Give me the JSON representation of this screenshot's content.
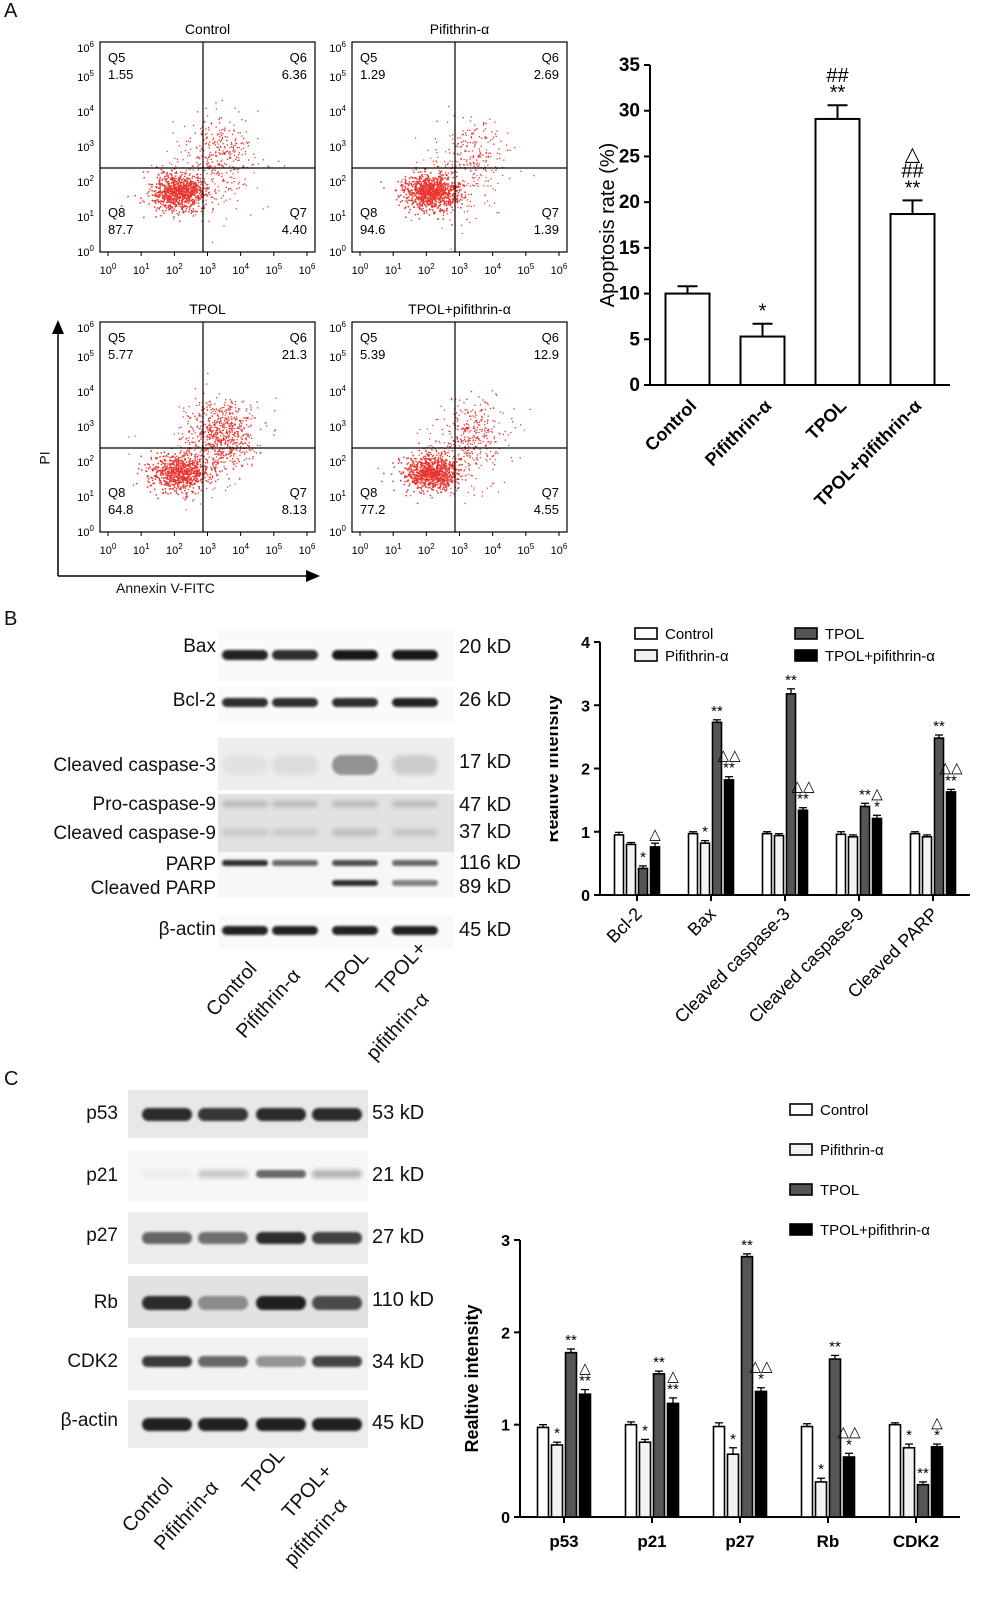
{
  "panels": {
    "a": "A",
    "b": "B",
    "c": "C"
  },
  "flow": {
    "plots": [
      {
        "title": "Control",
        "q5": "1.55",
        "q6": "6.36",
        "q8": "87.7",
        "q7": "4.40"
      },
      {
        "title": "Pifithrin-α",
        "q5": "1.29",
        "q6": "2.69",
        "q8": "94.6",
        "q7": "1.39"
      },
      {
        "title": "TPOL",
        "q5": "5.77",
        "q6": "21.3",
        "q8": "64.8",
        "q7": "8.13"
      },
      {
        "title": "TPOL+pifithrin-α",
        "q5": "5.39",
        "q6": "12.9",
        "q8": "77.2",
        "q7": "4.55"
      }
    ],
    "quadrant_names": {
      "q5": "Q5",
      "q6": "Q6",
      "q7": "Q7",
      "q8": "Q8"
    },
    "ylabel": "PI",
    "xlabel": "Annexin V-FITC",
    "ticks": [
      "10^0",
      "10^1",
      "10^2",
      "10^3",
      "10^4",
      "10^5",
      "10^6"
    ]
  },
  "blot_b": {
    "rows": [
      {
        "label": "Bax",
        "kd": "20 kD"
      },
      {
        "label": "Bcl-2",
        "kd": "26 kD"
      },
      {
        "label": "Cleaved caspase-3",
        "kd": "17 kD"
      },
      {
        "label": "Pro-caspase-9",
        "kd": "47 kD"
      },
      {
        "label": "Cleaved caspase-9",
        "kd": "37 kD"
      },
      {
        "label": "PARP",
        "kd": "116 kD"
      },
      {
        "label": "Cleaved PARP",
        "kd": "89 kD"
      },
      {
        "label": "β-actin",
        "kd": "45 kD"
      }
    ],
    "lanes": [
      "Control",
      "Pifithrin-α",
      "TPOL",
      "TPOL+",
      "pifithrin-α"
    ]
  },
  "blot_c": {
    "rows": [
      {
        "label": "p53",
        "kd": "53 kD"
      },
      {
        "label": "p21",
        "kd": "21 kD"
      },
      {
        "label": "p27",
        "kd": "27 kD"
      },
      {
        "label": "Rb",
        "kd": "110 kD"
      },
      {
        "label": "CDK2",
        "kd": "34 kD"
      },
      {
        "label": "β-actin",
        "kd": "45 kD"
      }
    ],
    "lanes": [
      "Control",
      "Pifithrin-α",
      "TPOL",
      "TPOL+",
      "pifithrin-α"
    ]
  },
  "chart_data": [
    {
      "type": "bar",
      "title": "",
      "xlabel": "",
      "ylabel": "Apoptosis rate (%)",
      "ylim": [
        0,
        35
      ],
      "yticks": [
        0,
        5,
        10,
        15,
        20,
        25,
        30,
        35
      ],
      "categories": [
        "Control",
        "Pifithrin-α",
        "TPOL",
        "TPOL+pifithrin-α"
      ],
      "values": [
        10.0,
        5.3,
        29.1,
        18.7
      ],
      "errors": [
        0.8,
        1.4,
        1.5,
        1.5
      ],
      "annotations": [
        [],
        [
          "*"
        ],
        [
          "**",
          "##"
        ],
        [
          "**",
          "##",
          "△"
        ]
      ],
      "fills": [
        "#ffffff",
        "#ffffff",
        "#ffffff",
        "#ffffff"
      ]
    },
    {
      "type": "bar",
      "title": "",
      "xlabel": "",
      "ylabel": "Realtive intensity",
      "ylim": [
        0,
        4
      ],
      "yticks": [
        0,
        1,
        2,
        3,
        4
      ],
      "categories": [
        "Bcl-2",
        "Bax",
        "Cleaved caspase-3",
        "Cleaved caspase-9",
        "Cleaved PARP"
      ],
      "legend_position": "top",
      "series": [
        {
          "name": "Control",
          "values": [
            0.95,
            0.97,
            0.97,
            0.96,
            0.97
          ],
          "errors": [
            0.04,
            0.03,
            0.03,
            0.04,
            0.03
          ],
          "annotations": [
            "",
            "",
            "",
            "",
            ""
          ],
          "color": "#ffffff"
        },
        {
          "name": "Pifithrin-α",
          "values": [
            0.8,
            0.82,
            0.94,
            0.92,
            0.92
          ],
          "errors": [
            0.03,
            0.04,
            0.03,
            0.03,
            0.03
          ],
          "annotations": [
            "",
            "*",
            "",
            "",
            ""
          ],
          "color": "#f2f2f2"
        },
        {
          "name": "TPOL",
          "values": [
            0.42,
            2.73,
            3.18,
            1.4,
            2.48
          ],
          "errors": [
            0.04,
            0.04,
            0.08,
            0.05,
            0.05
          ],
          "annotations": [
            "*",
            "**",
            "**",
            "**",
            "**"
          ],
          "color": "#555555"
        },
        {
          "name": "TPOL+pifithrin-α",
          "values": [
            0.76,
            1.82,
            1.34,
            1.21,
            1.63
          ],
          "errors": [
            0.06,
            0.05,
            0.04,
            0.05,
            0.04
          ],
          "annotations": [
            "△",
            "**△△",
            "**△△",
            "*△",
            "**△△"
          ],
          "color": "#000000"
        }
      ]
    },
    {
      "type": "bar",
      "title": "",
      "xlabel": "",
      "ylabel": "Realtive intensity",
      "ylim": [
        0,
        3
      ],
      "yticks": [
        0,
        1,
        2,
        3
      ],
      "categories": [
        "p53",
        "p21",
        "p27",
        "Rb",
        "CDK2"
      ],
      "legend_position": "top-right",
      "series": [
        {
          "name": "Control",
          "values": [
            0.97,
            1.0,
            0.98,
            0.98,
            1.0
          ],
          "errors": [
            0.03,
            0.03,
            0.04,
            0.03,
            0.02
          ],
          "annotations": [
            "",
            "",
            "",
            "",
            ""
          ],
          "color": "#ffffff"
        },
        {
          "name": "Pifithrin-α",
          "values": [
            0.78,
            0.81,
            0.68,
            0.38,
            0.75
          ],
          "errors": [
            0.03,
            0.03,
            0.07,
            0.04,
            0.04
          ],
          "annotations": [
            "*",
            "*",
            "*",
            "*",
            "*"
          ],
          "color": "#f2f2f2"
        },
        {
          "name": "TPOL",
          "values": [
            1.78,
            1.55,
            2.82,
            1.71,
            0.35
          ],
          "errors": [
            0.04,
            0.03,
            0.03,
            0.04,
            0.03
          ],
          "annotations": [
            "**",
            "**",
            "**",
            "**",
            "**"
          ],
          "color": "#555555"
        },
        {
          "name": "TPOL+pifithrin-α",
          "values": [
            1.33,
            1.23,
            1.36,
            0.65,
            0.76
          ],
          "errors": [
            0.05,
            0.06,
            0.04,
            0.04,
            0.03
          ],
          "annotations": [
            "**△",
            "**△",
            "*△△",
            "*△△",
            "*△"
          ],
          "color": "#000000"
        }
      ]
    }
  ]
}
